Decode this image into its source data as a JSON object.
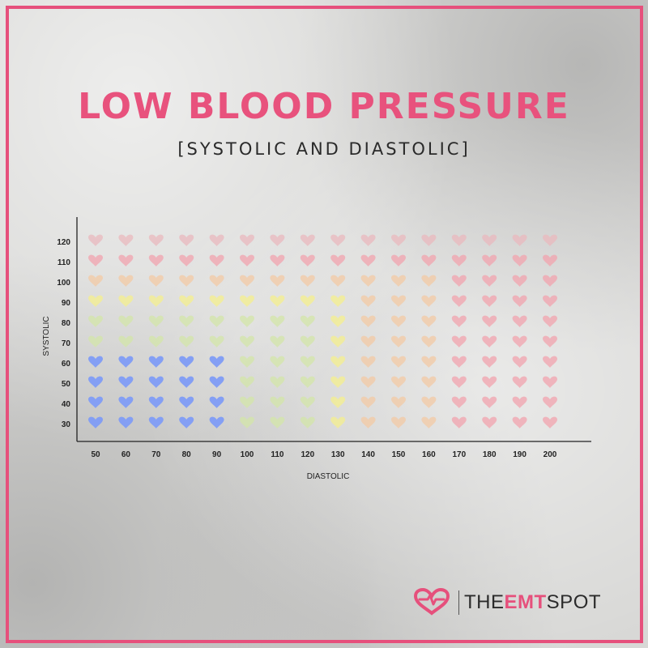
{
  "chart_data": {
    "type": "heatmap",
    "title": "LOW BLOOD PRESSURE",
    "subtitle": "[SYSTOLIC AND DIASTOLIC]",
    "xlabel": "DIASTOLIC",
    "ylabel": "SYSTOLIC",
    "x": [
      50,
      60,
      70,
      80,
      90,
      100,
      110,
      120,
      130,
      140,
      150,
      160,
      170,
      180,
      190,
      200
    ],
    "y": [
      120,
      110,
      100,
      90,
      80,
      70,
      60,
      50,
      40,
      30
    ],
    "color_scale": [
      {
        "name": "blue",
        "hex": "#7f9cf5"
      },
      {
        "name": "green",
        "hex": "#d3e6a8"
      },
      {
        "name": "yellow",
        "hex": "#f4ef8e"
      },
      {
        "name": "peach",
        "hex": "#f3c9a4"
      },
      {
        "name": "pink",
        "hex": "#f2a3ad"
      },
      {
        "name": "mauve",
        "hex": "#e9b8be"
      }
    ],
    "grid": [
      [
        "mauve",
        "mauve",
        "mauve",
        "mauve",
        "mauve",
        "mauve",
        "mauve",
        "mauve",
        "mauve",
        "mauve",
        "mauve",
        "mauve",
        "mauve",
        "mauve",
        "mauve",
        "mauve"
      ],
      [
        "pink",
        "pink",
        "pink",
        "pink",
        "pink",
        "pink",
        "pink",
        "pink",
        "pink",
        "pink",
        "pink",
        "pink",
        "pink",
        "pink",
        "pink",
        "pink"
      ],
      [
        "peach",
        "peach",
        "peach",
        "peach",
        "peach",
        "peach",
        "peach",
        "peach",
        "peach",
        "peach",
        "peach",
        "peach",
        "pink",
        "pink",
        "pink",
        "pink"
      ],
      [
        "yellow",
        "yellow",
        "yellow",
        "yellow",
        "yellow",
        "yellow",
        "yellow",
        "yellow",
        "yellow",
        "peach",
        "peach",
        "peach",
        "pink",
        "pink",
        "pink",
        "pink"
      ],
      [
        "green",
        "green",
        "green",
        "green",
        "green",
        "green",
        "green",
        "green",
        "yellow",
        "peach",
        "peach",
        "peach",
        "pink",
        "pink",
        "pink",
        "pink"
      ],
      [
        "green",
        "green",
        "green",
        "green",
        "green",
        "green",
        "green",
        "green",
        "yellow",
        "peach",
        "peach",
        "peach",
        "pink",
        "pink",
        "pink",
        "pink"
      ],
      [
        "blue",
        "blue",
        "blue",
        "blue",
        "blue",
        "green",
        "green",
        "green",
        "yellow",
        "peach",
        "peach",
        "peach",
        "pink",
        "pink",
        "pink",
        "pink"
      ],
      [
        "blue",
        "blue",
        "blue",
        "blue",
        "blue",
        "green",
        "green",
        "green",
        "yellow",
        "peach",
        "peach",
        "peach",
        "pink",
        "pink",
        "pink",
        "pink"
      ],
      [
        "blue",
        "blue",
        "blue",
        "blue",
        "blue",
        "green",
        "green",
        "green",
        "yellow",
        "peach",
        "peach",
        "peach",
        "pink",
        "pink",
        "pink",
        "pink"
      ],
      [
        "blue",
        "blue",
        "blue",
        "blue",
        "blue",
        "green",
        "green",
        "green",
        "yellow",
        "peach",
        "peach",
        "peach",
        "pink",
        "pink",
        "pink",
        "pink"
      ]
    ]
  },
  "colors": {
    "accent": "#e6507c",
    "axis": "#222222"
  },
  "brand": {
    "the": "THE",
    "emt": "EMT",
    "spot": "SPOT",
    "logo_icon": "heart-logo-icon"
  }
}
